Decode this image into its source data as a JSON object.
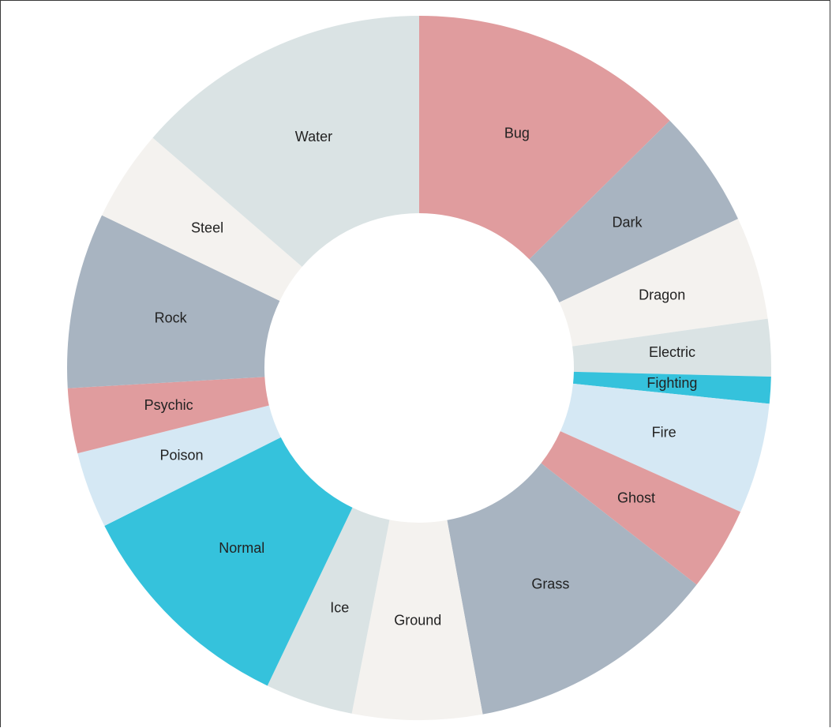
{
  "chart_data": {
    "type": "pie",
    "variant": "donut",
    "title": "",
    "categories": [
      "Bug",
      "Dark",
      "Dragon",
      "Electric",
      "Fighting",
      "Fire",
      "Ghost",
      "Grass",
      "Ground",
      "Ice",
      "Normal",
      "Poison",
      "Psychic",
      "Rock",
      "Steel",
      "Water"
    ],
    "values": [
      72,
      31,
      27,
      15,
      7,
      29,
      22,
      66,
      34,
      23,
      60,
      20,
      17,
      46,
      24,
      78
    ],
    "colors": [
      "#e09c9e",
      "#a8b4c1",
      "#f4f2ef",
      "#dae3e4",
      "#35c2dc",
      "#d5e8f4",
      "#e09c9e",
      "#a8b4c1",
      "#f4f2ef",
      "#dae3e4",
      "#35c2dc",
      "#d5e8f4",
      "#e09c9e",
      "#a8b4c1",
      "#f4f2ef",
      "#dae3e4"
    ],
    "start_angle_deg": 0,
    "direction": "clockwise",
    "legend": "none"
  }
}
